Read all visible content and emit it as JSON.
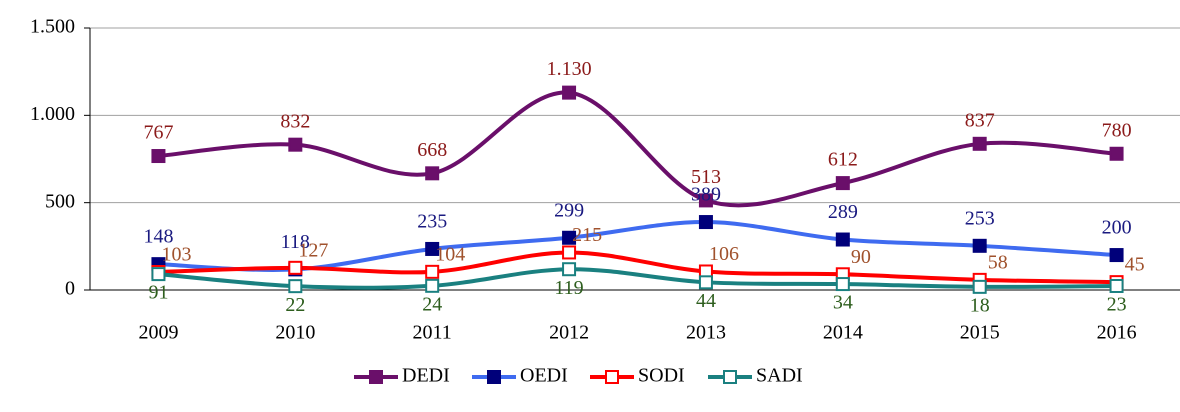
{
  "chart_data": {
    "type": "line",
    "categories": [
      "2009",
      "2010",
      "2011",
      "2012",
      "2013",
      "2014",
      "2015",
      "2016"
    ],
    "ylim": [
      0,
      1500
    ],
    "yticks": [
      0,
      500,
      {
        "value": 1000,
        "label": "1.000"
      },
      {
        "value": 1500,
        "label": "1.500"
      }
    ],
    "grid": true,
    "legend": "bottom",
    "series": [
      {
        "name": "DEDI",
        "color": "#6a0f6a",
        "marker_color": "#6a0f6a",
        "marker_fill": "#6a0f6a",
        "label_color": "#8b1a1a",
        "values": [
          767,
          832,
          668,
          1130,
          513,
          612,
          837,
          780
        ],
        "value_labels": [
          "767",
          "832",
          "668",
          "1.130",
          "513",
          "612",
          "837",
          "780"
        ]
      },
      {
        "name": "OEDI",
        "color": "#3f6bf0",
        "marker_color": "#00007a",
        "marker_fill": "#00007a",
        "label_color": "#1a1a80",
        "values": [
          148,
          118,
          235,
          299,
          389,
          289,
          253,
          200
        ]
      },
      {
        "name": "SODI",
        "color": "#ff0000",
        "marker_color": "#ff0000",
        "marker_fill": "#ffffff",
        "label_color": "#a0522d",
        "values": [
          103,
          127,
          104,
          215,
          106,
          90,
          58,
          45
        ]
      },
      {
        "name": "SADI",
        "color": "#1a8080",
        "marker_color": "#1a8080",
        "marker_fill": "#ffffff",
        "label_color": "#2e5e1e",
        "values": [
          91,
          22,
          24,
          119,
          44,
          34,
          18,
          23
        ]
      }
    ]
  }
}
